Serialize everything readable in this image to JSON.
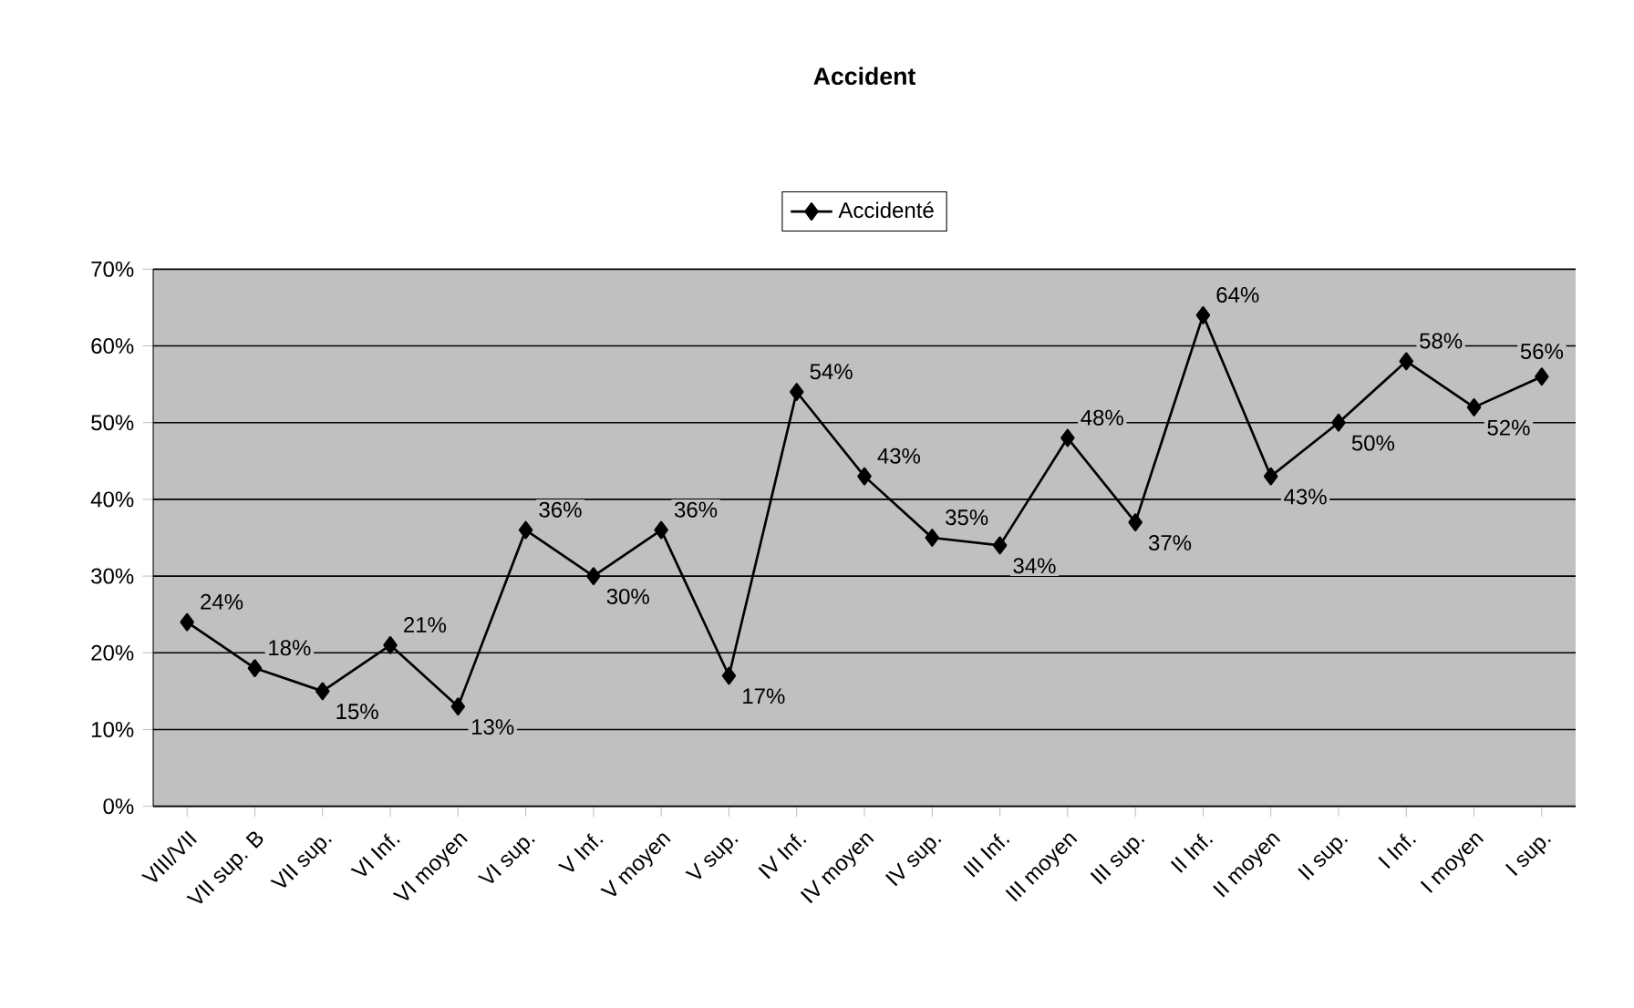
{
  "chart_data": {
    "type": "line",
    "title": "Accident",
    "categories": [
      "VIII/VII",
      "VII sup. B",
      "VII sup.",
      "VI Inf.",
      "VI moyen",
      "VI sup.",
      "V Inf.",
      "V moyen",
      "V sup.",
      "IV Inf.",
      "IV moyen",
      "IV sup.",
      "III Inf.",
      "III moyen",
      "III sup.",
      "II Inf.",
      "II moyen",
      "II sup.",
      "I Inf.",
      "I moyen",
      "I sup."
    ],
    "series": [
      {
        "name": "Accidenté",
        "color": "#000000",
        "values": [
          24,
          18,
          15,
          21,
          13,
          36,
          30,
          36,
          17,
          54,
          43,
          35,
          34,
          48,
          37,
          64,
          43,
          50,
          58,
          52,
          56
        ],
        "value_labels": [
          "24%",
          "18%",
          "15%",
          "21%",
          "13%",
          "36%",
          "30%",
          "36%",
          "17%",
          "54%",
          "43%",
          "35%",
          "34%",
          "48%",
          "37%",
          "64%",
          "43%",
          "50%",
          "58%",
          "52%",
          "56%"
        ]
      }
    ],
    "ylim": [
      0,
      70
    ],
    "yticks": [
      {
        "value": 0,
        "label": "0%"
      },
      {
        "value": 10,
        "label": "10%"
      },
      {
        "value": 20,
        "label": "20%"
      },
      {
        "value": 30,
        "label": "30%"
      },
      {
        "value": 40,
        "label": "40%"
      },
      {
        "value": 50,
        "label": "50%"
      },
      {
        "value": 60,
        "label": "60%"
      },
      {
        "value": 70,
        "label": "70%"
      }
    ],
    "grid": "y",
    "legend": "top",
    "marker": "diamond",
    "line_style": "solid"
  }
}
